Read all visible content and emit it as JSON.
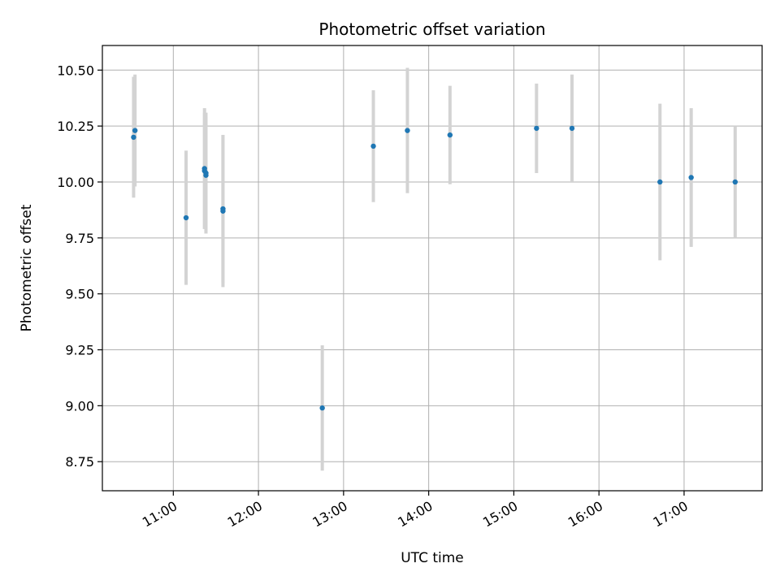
{
  "chart_data": {
    "type": "scatter",
    "title": "Photometric offset variation",
    "xlabel": "UTC time",
    "ylabel": "Photometric offset",
    "xlim": [
      "10:10",
      "17:55"
    ],
    "ylim": [
      8.62,
      10.61
    ],
    "x_ticks": [
      "11:00",
      "12:00",
      "13:00",
      "14:00",
      "15:00",
      "16:00",
      "17:00"
    ],
    "y_ticks": [
      "8.75",
      "9.00",
      "9.25",
      "9.50",
      "9.75",
      "10.00",
      "10.25",
      "10.50"
    ],
    "grid": true,
    "point_color": "#1f77b4",
    "errorbar_color": "#d3d3d3",
    "points": [
      {
        "time": "10:32",
        "y": 10.2,
        "err": 0.27
      },
      {
        "time": "10:33",
        "y": 10.23,
        "err": 0.25
      },
      {
        "time": "11:09",
        "y": 9.84,
        "err": 0.3
      },
      {
        "time": "11:22",
        "y": 10.06,
        "err": 0.27
      },
      {
        "time": "11:22",
        "y": 10.05,
        "err": 0.26
      },
      {
        "time": "11:23",
        "y": 10.03,
        "err": 0.26
      },
      {
        "time": "11:23",
        "y": 10.04,
        "err": 0.27
      },
      {
        "time": "11:35",
        "y": 9.88,
        "err": 0.33
      },
      {
        "time": "11:35",
        "y": 9.87,
        "err": 0.34
      },
      {
        "time": "12:45",
        "y": 8.99,
        "err": 0.28
      },
      {
        "time": "13:21",
        "y": 10.16,
        "err": 0.25
      },
      {
        "time": "13:45",
        "y": 10.23,
        "err": 0.28
      },
      {
        "time": "14:15",
        "y": 10.21,
        "err": 0.22
      },
      {
        "time": "15:16",
        "y": 10.24,
        "err": 0.2
      },
      {
        "time": "15:41",
        "y": 10.24,
        "err": 0.24
      },
      {
        "time": "16:43",
        "y": 10.0,
        "err": 0.35
      },
      {
        "time": "17:05",
        "y": 10.02,
        "err": 0.31
      },
      {
        "time": "17:36",
        "y": 10.0,
        "err": 0.25
      }
    ]
  }
}
